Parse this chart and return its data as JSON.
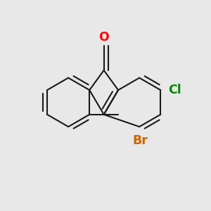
{
  "bg_color": "#e8e8e8",
  "bond_color": "#1a1a1a",
  "bond_lw": 1.5,
  "O_color": "#ff0000",
  "Br_color": "#cc6600",
  "Cl_color": "#008800",
  "O_label": "O",
  "Br_label": "Br",
  "Cl_label": "Cl",
  "label_fontsize": 12.5,
  "figsize": [
    3.0,
    3.0
  ],
  "dpi": 100,
  "xlim": [
    0.0,
    1.0
  ],
  "ylim": [
    0.0,
    1.0
  ]
}
